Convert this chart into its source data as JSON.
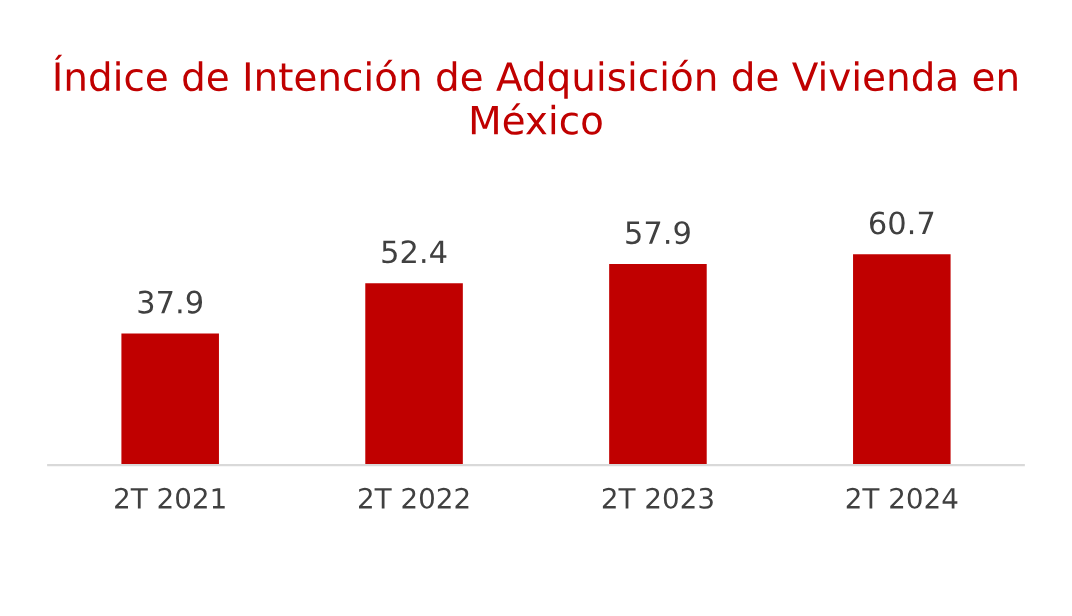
{
  "chart_data": {
    "type": "bar",
    "title": "Índice de Intención de Adquisición de Vivienda en México",
    "categories": [
      "2T 2021",
      "2T 2022",
      "2T 2023",
      "2T 2024"
    ],
    "values": [
      37.9,
      52.4,
      57.9,
      60.7
    ],
    "color": "#c00000",
    "data_labels": true,
    "grid": false,
    "legend": false,
    "tick_labels": "x"
  }
}
